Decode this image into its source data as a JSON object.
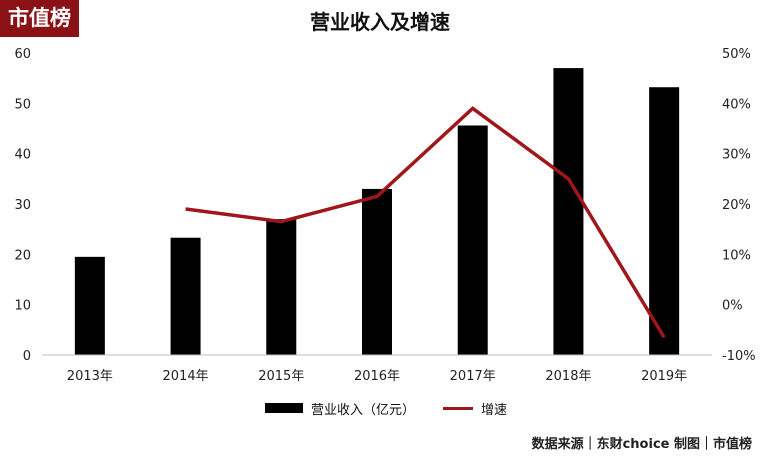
{
  "logo": {
    "text": "市值榜"
  },
  "source_text": "数据来源｜东财choice  制图｜市值榜",
  "colors": {
    "bar": "#000000",
    "line": "#a0161b",
    "logo_bg": "#8a1116"
  },
  "chart_data": {
    "type": "bar",
    "title": "营业收入及增速",
    "categories": [
      "2013年",
      "2014年",
      "2015年",
      "2016年",
      "2017年",
      "2018年",
      "2019年"
    ],
    "series": [
      {
        "name": "营业收入（亿元）",
        "type": "bar",
        "axis": "left",
        "values": [
          19.5,
          23.3,
          27.0,
          33.0,
          45.6,
          57.0,
          53.2
        ]
      },
      {
        "name": "增速",
        "type": "line",
        "axis": "right",
        "values": [
          null,
          19.0,
          16.5,
          21.5,
          39.0,
          25.0,
          -6.5
        ]
      }
    ],
    "y_left": {
      "ylim": [
        0,
        60
      ],
      "ticks": [
        "0",
        "10",
        "20",
        "30",
        "40",
        "50",
        "60"
      ]
    },
    "y_right": {
      "ylim": [
        -10,
        50
      ],
      "ticks": [
        "-10%",
        "0%",
        "10%",
        "20%",
        "30%",
        "40%",
        "50%"
      ]
    },
    "grid": false,
    "legend_position": "bottom"
  }
}
